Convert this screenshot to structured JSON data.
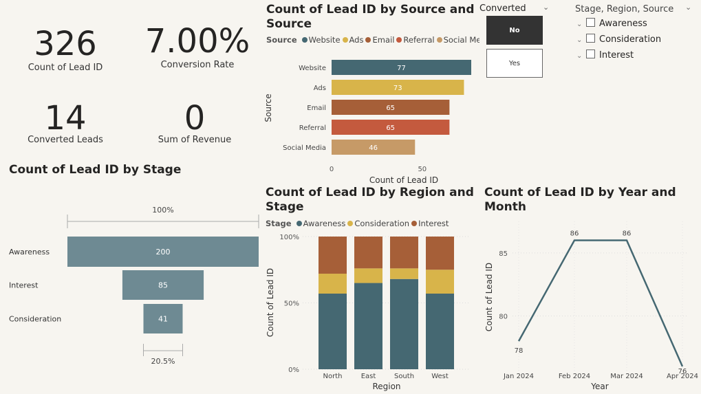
{
  "kpis": [
    {
      "value": "326",
      "label": "Count of Lead ID"
    },
    {
      "value": "7.00%",
      "label": "Conversion Rate"
    },
    {
      "value": "14",
      "label": "Converted Leads"
    },
    {
      "value": "0",
      "label": "Sum of Revenue"
    }
  ],
  "converted_slicer": {
    "title": "Converted",
    "options": [
      "No",
      "Yes"
    ],
    "selected": "No"
  },
  "hierarchy_slicer": {
    "title": "Stage, Region, Source",
    "items": [
      "Awareness",
      "Consideration",
      "Interest"
    ]
  },
  "colors": {
    "teal": "#456872",
    "gold": "#d8b44a",
    "brown": "#a65f38",
    "red": "#c45a3e",
    "tan": "#c69a67",
    "funnel": "#6e8a93"
  },
  "chart_data": [
    {
      "id": "by_source",
      "type": "bar",
      "orientation": "horizontal",
      "title": "Count of Lead ID by Source and Source",
      "legend_title": "Source",
      "legend": [
        "Website",
        "Ads",
        "Email",
        "Referral",
        "Social Me..."
      ],
      "categories": [
        "Website",
        "Ads",
        "Email",
        "Referral",
        "Social Media"
      ],
      "values": [
        77,
        73,
        65,
        65,
        46
      ],
      "colors": [
        "#456872",
        "#d8b44a",
        "#a65f38",
        "#c45a3e",
        "#c69a67"
      ],
      "xlabel": "Count of Lead ID",
      "ylabel": "Source",
      "xticks": [
        "0",
        "50"
      ],
      "xlim": [
        0,
        80
      ]
    },
    {
      "id": "by_stage",
      "type": "funnel",
      "title": "Count of Lead ID by Stage",
      "categories": [
        "Awareness",
        "Interest",
        "Consideration"
      ],
      "values": [
        200,
        85,
        41
      ],
      "top_pct": "100%",
      "bottom_pct": "20.5%"
    },
    {
      "id": "by_region_stage",
      "type": "bar",
      "stacked": "100%",
      "title": "Count of Lead ID by Region and Stage",
      "legend_title": "Stage",
      "categories": [
        "North",
        "East",
        "South",
        "West"
      ],
      "series": [
        {
          "name": "Awareness",
          "values": [
            57,
            65,
            68,
            57
          ],
          "color": "#456872"
        },
        {
          "name": "Consideration",
          "values": [
            15,
            11,
            8,
            18
          ],
          "color": "#d8b44a"
        },
        {
          "name": "Interest",
          "values": [
            28,
            24,
            24,
            25
          ],
          "color": "#a65f38"
        }
      ],
      "xlabel": "Region",
      "ylabel": "Count of Lead ID",
      "yticks": [
        "0%",
        "50%",
        "100%"
      ]
    },
    {
      "id": "by_month",
      "type": "line",
      "title": "Count of Lead ID by Year and Month",
      "categories": [
        "Jan 2024",
        "Feb 2024",
        "Mar 2024",
        "Apr 2024"
      ],
      "values": [
        78,
        86,
        86,
        76
      ],
      "xlabel": "Year",
      "ylabel": "Count of Lead ID",
      "yticks": [
        80,
        85
      ],
      "ylim": [
        75.5,
        87.5
      ],
      "color": "#456872"
    }
  ]
}
